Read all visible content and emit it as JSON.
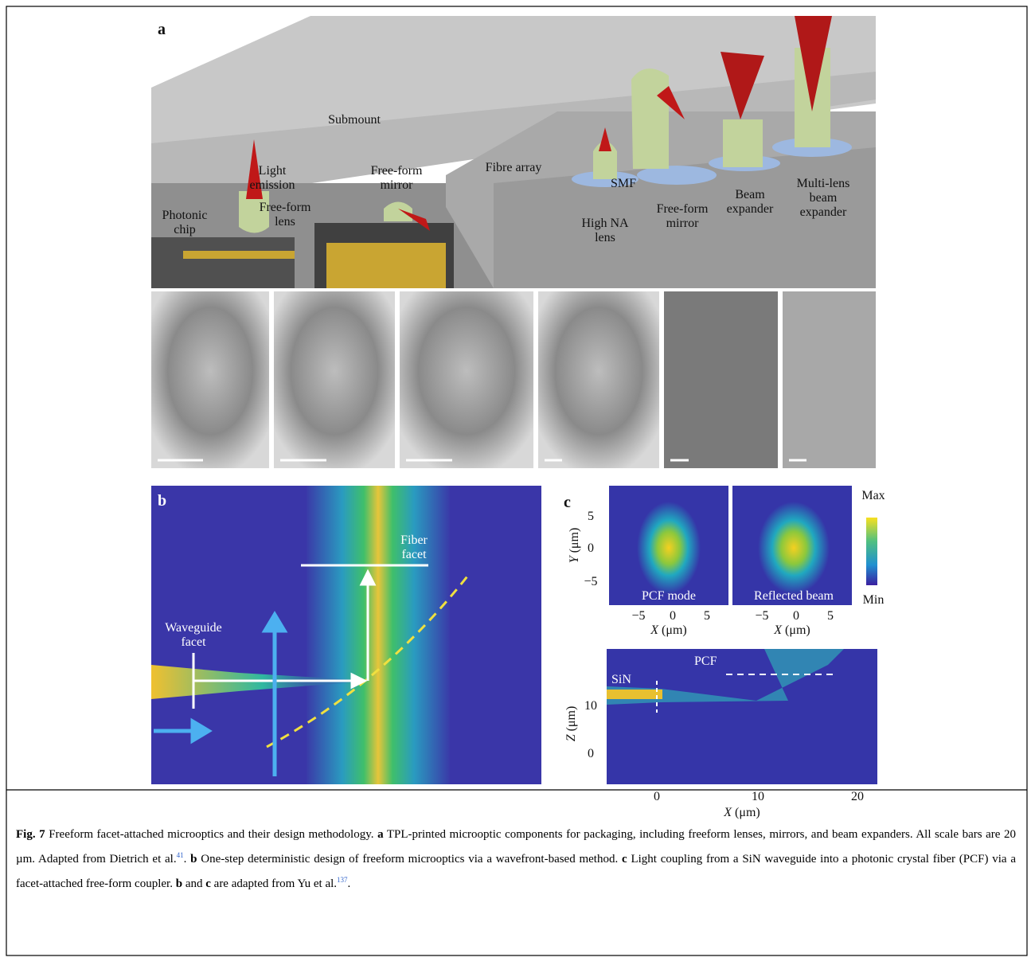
{
  "panel_a": {
    "label": "a",
    "callouts": [
      {
        "lines": [
          "Submount"
        ]
      },
      {
        "lines": [
          "Light",
          "emission"
        ]
      },
      {
        "lines": [
          "Free-form",
          "lens"
        ]
      },
      {
        "lines": [
          "Photonic",
          "chip"
        ]
      },
      {
        "lines": [
          "Free-form",
          "mirror"
        ]
      },
      {
        "lines": [
          "Fibre array"
        ]
      },
      {
        "lines": [
          "SMF"
        ]
      },
      {
        "lines": [
          "High NA",
          "lens"
        ]
      },
      {
        "lines": [
          "Free-form",
          "mirror"
        ]
      },
      {
        "lines": [
          "Beam",
          "expander"
        ]
      },
      {
        "lines": [
          "Multi-lens",
          "beam",
          "expander"
        ]
      }
    ]
  },
  "panel_b": {
    "label": "b",
    "fiber_facet": [
      "Fiber",
      "facet"
    ],
    "waveguide_facet": [
      "Waveguide",
      "facet"
    ]
  },
  "panel_c": {
    "label": "c",
    "top": {
      "y_axis": {
        "var": "Y",
        "unit": "(μm)"
      },
      "yticks": [
        "5",
        "0",
        "−5"
      ],
      "xticks": [
        "−5",
        "0",
        "5"
      ],
      "x_axis": {
        "var": "X",
        "unit": "(μm)"
      },
      "insets": [
        "PCF mode",
        "Reflected beam"
      ],
      "colorbar": [
        "Max",
        "Min"
      ]
    },
    "bottom": {
      "labels": [
        "PCF",
        "SiN"
      ],
      "y_axis": {
        "var": "Z",
        "unit": "(μm)"
      },
      "yticks": [
        "10",
        "0"
      ],
      "xticks": [
        "0",
        "10",
        "20"
      ],
      "x_axis": {
        "var": "X",
        "unit": "(μm)"
      }
    }
  },
  "caption": [
    {
      "text": "Fig. 7",
      "style": "bold"
    },
    {
      "text": " Freeform facet-attached microoptics and their design methodology. "
    },
    {
      "text": "a",
      "style": "bold"
    },
    {
      "text": " TPL-printed microoptic components for packaging, including freeform lenses, mirrors, and beam expanders. All scale bars are 20 µm. Adapted from Dietrich et al."
    },
    {
      "text": "41",
      "style": "sup"
    },
    {
      "text": ". "
    },
    {
      "text": "b",
      "style": "bold"
    },
    {
      "text": " One-step deterministic design of freeform microoptics via a wavefront-based method. "
    },
    {
      "text": "c",
      "style": "bold"
    },
    {
      "text": " Light coupling from a SiN waveguide into a photonic crystal fiber (PCF) via a facet-attached free-form coupler. "
    },
    {
      "text": "b",
      "style": "bold"
    },
    {
      "text": " and "
    },
    {
      "text": "c",
      "style": "bold"
    },
    {
      "text": " are adapted from Yu et al."
    },
    {
      "text": "137",
      "style": "sup"
    },
    {
      "text": "."
    }
  ]
}
